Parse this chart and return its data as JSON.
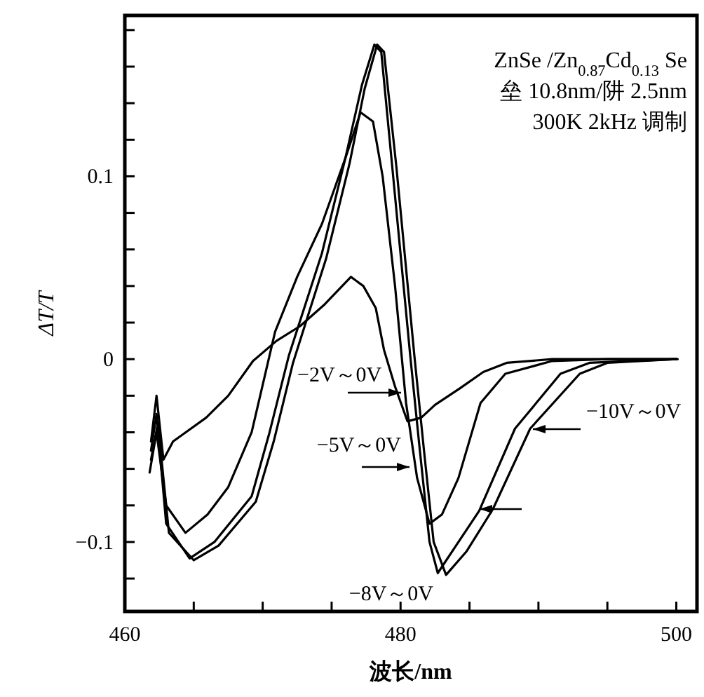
{
  "chart_data": {
    "type": "line",
    "xlabel": "波长/nm",
    "ylabel": "ΔT/T",
    "annotations": [
      "ZnSe /Zn$_{0.87}$Cd$_{0.13}$ Se",
      "垒 10.8nm/阱 2.5nm",
      "300K 2kHz 调制"
    ],
    "xlim": [
      460,
      501.5
    ],
    "ylim": [
      -0.138,
      0.188
    ],
    "xticks": [
      460,
      {
        "value": 465,
        "label": null
      },
      {
        "value": 470,
        "label": null
      },
      {
        "value": 475,
        "label": null
      },
      480,
      {
        "value": 485,
        "label": null
      },
      {
        "value": 490,
        "label": null
      },
      {
        "value": 495,
        "label": null
      },
      500
    ],
    "yticks": [
      {
        "value": -0.12,
        "label": null
      },
      {
        "value": -0.1,
        "label": "−0.1"
      },
      {
        "value": -0.08,
        "label": null
      },
      {
        "value": -0.06,
        "label": null
      },
      {
        "value": -0.04,
        "label": null
      },
      {
        "value": -0.02,
        "label": null
      },
      0,
      {
        "value": 0.02,
        "label": null
      },
      {
        "value": 0.04,
        "label": null
      },
      {
        "value": 0.06,
        "label": null
      },
      {
        "value": 0.08,
        "label": null
      },
      0.1,
      {
        "value": 0.12,
        "label": null
      },
      {
        "value": 0.14,
        "label": null
      },
      {
        "value": 0.16,
        "label": null
      },
      {
        "value": 0.18,
        "label": null
      }
    ],
    "grid": false,
    "marker": "none",
    "line_style": "solid",
    "series": [
      {
        "name": "−2V～0V",
        "color": "#000000",
        "x": [
          461.9,
          462.3,
          462.8,
          463.5,
          465.9,
          467.5,
          469.3,
          471,
          472.7,
          474.5,
          476.4,
          477.3,
          478.2,
          478.8,
          479.6,
          480.5,
          481.5,
          482.5,
          484.3,
          486,
          487.7,
          491,
          495,
          500.1
        ],
        "values": [
          -0.045,
          -0.02,
          -0.055,
          -0.045,
          -0.032,
          -0.02,
          -0.001,
          0.01,
          0.018,
          0.03,
          0.045,
          0.04,
          0.028,
          0.005,
          -0.015,
          -0.034,
          -0.032,
          -0.025,
          -0.016,
          -0.007,
          -0.002,
          0,
          0,
          0
        ]
      },
      {
        "name": "−5V～0V",
        "color": "#000000",
        "x": [
          461.8,
          462.3,
          463,
          464.4,
          466,
          467.5,
          469.2,
          470.9,
          472.5,
          474.3,
          476,
          477.1,
          478,
          478.7,
          479.6,
          480.4,
          481.2,
          482.1,
          483,
          484.2,
          485.8,
          487.6,
          491,
          495,
          500
        ],
        "values": [
          -0.062,
          -0.04,
          -0.08,
          -0.095,
          -0.085,
          -0.07,
          -0.04,
          0.015,
          0.045,
          0.074,
          0.11,
          0.135,
          0.13,
          0.1,
          0.04,
          -0.024,
          -0.065,
          -0.09,
          -0.085,
          -0.065,
          -0.024,
          -0.008,
          -0.001,
          0,
          0
        ]
      },
      {
        "name": "−8V～0V",
        "color": "#000000",
        "x": [
          461.9,
          462.3,
          463,
          464.7,
          466.5,
          469.2,
          470.5,
          471.9,
          474.3,
          476,
          477.2,
          478.1,
          478.6,
          479.4,
          480.7,
          481.4,
          482.1,
          482.7,
          484.2,
          485.7,
          488.3,
          491.6,
          493.7,
          500
        ],
        "values": [
          -0.05,
          -0.03,
          -0.09,
          -0.109,
          -0.1,
          -0.075,
          -0.04,
          0.002,
          0.058,
          0.11,
          0.15,
          0.172,
          0.168,
          0.105,
          0.002,
          -0.05,
          -0.1,
          -0.117,
          -0.1,
          -0.083,
          -0.038,
          -0.008,
          -0.002,
          0
        ]
      },
      {
        "name": "−10V～0V",
        "color": "#000000",
        "x": [
          461.9,
          462.4,
          463.2,
          465,
          466.8,
          469.5,
          470.8,
          472.2,
          474.6,
          476.3,
          477.4,
          478.3,
          478.8,
          479.7,
          481,
          481.7,
          482.4,
          483.3,
          484.8,
          486.7,
          489.4,
          493,
          495,
          500
        ],
        "values": [
          -0.055,
          -0.035,
          -0.095,
          -0.11,
          -0.102,
          -0.078,
          -0.045,
          -0.002,
          0.055,
          0.107,
          0.148,
          0.172,
          0.168,
          0.105,
          0.002,
          -0.05,
          -0.1,
          -0.118,
          -0.105,
          -0.082,
          -0.038,
          -0.008,
          -0.002,
          0
        ]
      }
    ]
  }
}
